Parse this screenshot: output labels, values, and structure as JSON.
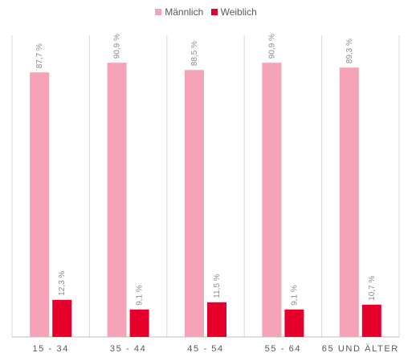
{
  "chart_data": {
    "type": "bar",
    "categories": [
      "15 - 34",
      "35 - 44",
      "45 - 54",
      "55 - 64",
      "65 UND ÄLTER"
    ],
    "series": [
      {
        "name": "Männlich",
        "color": "#f7a3b7",
        "values": [
          87.7,
          90.9,
          88.5,
          90.9,
          89.3
        ],
        "labels": [
          "87,7 %",
          "90,9 %",
          "88,5 %",
          "90,9 %",
          "89,3 %"
        ]
      },
      {
        "name": "Weiblich",
        "color": "#e4002b",
        "values": [
          12.3,
          9.1,
          11.5,
          9.1,
          10.7
        ],
        "labels": [
          "12,3 %",
          "9,1 %",
          "11,5 %",
          "9,1 %",
          "10,7 %"
        ]
      }
    ],
    "title": "",
    "xlabel": "",
    "ylabel": "",
    "ylim": [
      0,
      100
    ],
    "grid": false,
    "legend_position": "top"
  }
}
